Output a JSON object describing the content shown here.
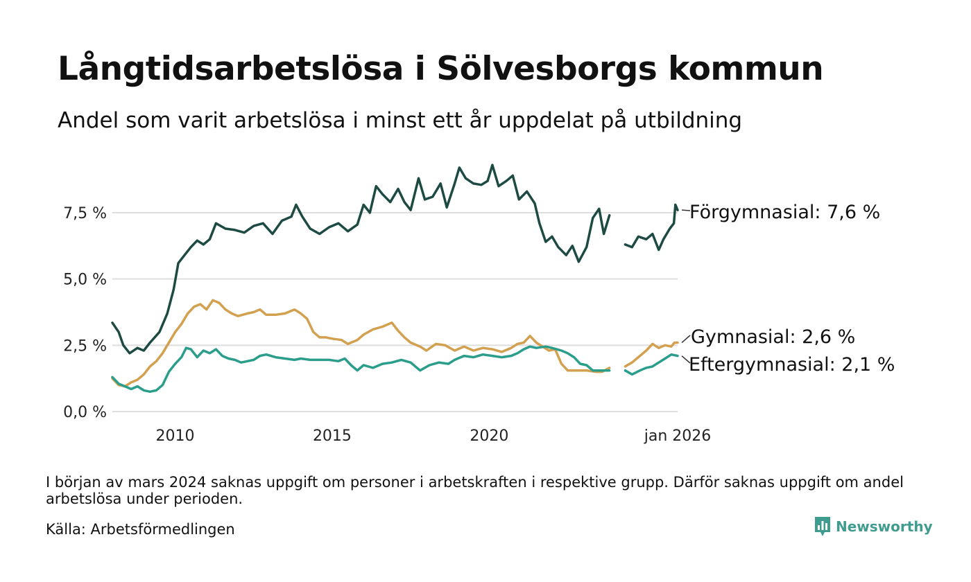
{
  "title": "Långtidsarbetslösa i Sölvesborgs kommun",
  "subtitle": "Andel som varit arbetslösa i minst ett år uppdelat på utbildning",
  "note": "I början av mars 2024 saknas uppgift om personer i arbetskraften i respektive grupp. Därför saknas uppgift om andel arbetslösa under perioden.",
  "source": "Källa: Arbetsförmedlingen",
  "brand": {
    "name": "Newsworthy",
    "icon": "bar-chart-icon",
    "color": "#3f9c8e"
  },
  "chart_data": {
    "type": "line",
    "title": "Långtidsarbetslösa i Sölvesborgs kommun",
    "ylabel": "",
    "xlabel": "",
    "ylim": [
      0,
      9.5
    ],
    "xlim": [
      2008.0,
      2026.0
    ],
    "grid": true,
    "y_ticks": [
      {
        "value": 0,
        "label": "0,0 %"
      },
      {
        "value": 2.5,
        "label": "2,5 %"
      },
      {
        "value": 5.0,
        "label": "5,0 %"
      },
      {
        "value": 7.5,
        "label": "7,5 %"
      }
    ],
    "x_ticks": [
      {
        "value": 2010,
        "label": "2010"
      },
      {
        "value": 2015,
        "label": "2015"
      },
      {
        "value": 2020,
        "label": "2020"
      },
      {
        "value": 2026,
        "label": "jan 2026"
      }
    ],
    "gap": [
      2023.83,
      2024.33
    ],
    "series": [
      {
        "name": "Förgymnasial",
        "end_label": "Förgymnasial: 7,6 %",
        "color": "#1e4a44",
        "points": [
          [
            2008.0,
            3.35
          ],
          [
            2008.2,
            3.0
          ],
          [
            2008.35,
            2.5
          ],
          [
            2008.55,
            2.2
          ],
          [
            2008.8,
            2.4
          ],
          [
            2009.0,
            2.3
          ],
          [
            2009.2,
            2.6
          ],
          [
            2009.5,
            3.0
          ],
          [
            2009.75,
            3.7
          ],
          [
            2009.95,
            4.6
          ],
          [
            2010.1,
            5.6
          ],
          [
            2010.3,
            5.9
          ],
          [
            2010.5,
            6.2
          ],
          [
            2010.7,
            6.45
          ],
          [
            2010.9,
            6.3
          ],
          [
            2011.1,
            6.5
          ],
          [
            2011.3,
            7.1
          ],
          [
            2011.6,
            6.9
          ],
          [
            2011.9,
            6.85
          ],
          [
            2012.2,
            6.75
          ],
          [
            2012.5,
            7.0
          ],
          [
            2012.8,
            7.1
          ],
          [
            2013.1,
            6.7
          ],
          [
            2013.4,
            7.2
          ],
          [
            2013.7,
            7.35
          ],
          [
            2013.85,
            7.8
          ],
          [
            2014.05,
            7.35
          ],
          [
            2014.3,
            6.9
          ],
          [
            2014.6,
            6.7
          ],
          [
            2014.9,
            6.95
          ],
          [
            2015.2,
            7.1
          ],
          [
            2015.5,
            6.8
          ],
          [
            2015.8,
            7.05
          ],
          [
            2016.0,
            7.8
          ],
          [
            2016.2,
            7.5
          ],
          [
            2016.4,
            8.5
          ],
          [
            2016.6,
            8.2
          ],
          [
            2016.85,
            7.9
          ],
          [
            2017.1,
            8.4
          ],
          [
            2017.3,
            7.9
          ],
          [
            2017.5,
            7.6
          ],
          [
            2017.75,
            8.8
          ],
          [
            2017.95,
            8.0
          ],
          [
            2018.2,
            8.1
          ],
          [
            2018.45,
            8.6
          ],
          [
            2018.65,
            7.7
          ],
          [
            2018.9,
            8.6
          ],
          [
            2019.05,
            9.2
          ],
          [
            2019.25,
            8.8
          ],
          [
            2019.5,
            8.6
          ],
          [
            2019.75,
            8.55
          ],
          [
            2019.95,
            8.7
          ],
          [
            2020.1,
            9.3
          ],
          [
            2020.3,
            8.5
          ],
          [
            2020.55,
            8.7
          ],
          [
            2020.75,
            8.9
          ],
          [
            2020.95,
            8.0
          ],
          [
            2021.2,
            8.3
          ],
          [
            2021.45,
            7.85
          ],
          [
            2021.6,
            7.1
          ],
          [
            2021.8,
            6.4
          ],
          [
            2022.0,
            6.6
          ],
          [
            2022.2,
            6.2
          ],
          [
            2022.45,
            5.9
          ],
          [
            2022.65,
            6.25
          ],
          [
            2022.85,
            5.65
          ],
          [
            2023.1,
            6.2
          ],
          [
            2023.3,
            7.3
          ],
          [
            2023.5,
            7.65
          ],
          [
            2023.65,
            6.7
          ],
          [
            2023.83,
            7.4
          ],
          [
            2024.33,
            6.3
          ],
          [
            2024.55,
            6.2
          ],
          [
            2024.75,
            6.6
          ],
          [
            2025.0,
            6.5
          ],
          [
            2025.2,
            6.7
          ],
          [
            2025.4,
            6.1
          ],
          [
            2025.55,
            6.5
          ],
          [
            2025.75,
            6.9
          ],
          [
            2025.88,
            7.1
          ],
          [
            2025.93,
            7.8
          ],
          [
            2026.0,
            7.6
          ]
        ]
      },
      {
        "name": "Gymnasial",
        "end_label": "Gymnasial: 2,6 %",
        "color": "#d2a04f",
        "points": [
          [
            2008.0,
            1.25
          ],
          [
            2008.2,
            1.0
          ],
          [
            2008.4,
            0.95
          ],
          [
            2008.6,
            1.1
          ],
          [
            2008.8,
            1.2
          ],
          [
            2009.0,
            1.4
          ],
          [
            2009.2,
            1.7
          ],
          [
            2009.4,
            1.9
          ],
          [
            2009.6,
            2.2
          ],
          [
            2009.85,
            2.7
          ],
          [
            2010.0,
            3.0
          ],
          [
            2010.2,
            3.3
          ],
          [
            2010.4,
            3.7
          ],
          [
            2010.6,
            3.95
          ],
          [
            2010.8,
            4.05
          ],
          [
            2011.0,
            3.85
          ],
          [
            2011.2,
            4.2
          ],
          [
            2011.4,
            4.1
          ],
          [
            2011.6,
            3.85
          ],
          [
            2011.8,
            3.7
          ],
          [
            2012.0,
            3.6
          ],
          [
            2012.3,
            3.7
          ],
          [
            2012.5,
            3.75
          ],
          [
            2012.7,
            3.85
          ],
          [
            2012.9,
            3.65
          ],
          [
            2013.2,
            3.65
          ],
          [
            2013.5,
            3.7
          ],
          [
            2013.8,
            3.85
          ],
          [
            2014.0,
            3.7
          ],
          [
            2014.2,
            3.5
          ],
          [
            2014.4,
            3.0
          ],
          [
            2014.6,
            2.8
          ],
          [
            2014.8,
            2.8
          ],
          [
            2015.0,
            2.75
          ],
          [
            2015.3,
            2.7
          ],
          [
            2015.5,
            2.55
          ],
          [
            2015.8,
            2.7
          ],
          [
            2016.0,
            2.9
          ],
          [
            2016.3,
            3.1
          ],
          [
            2016.6,
            3.2
          ],
          [
            2016.9,
            3.35
          ],
          [
            2017.1,
            3.05
          ],
          [
            2017.3,
            2.8
          ],
          [
            2017.5,
            2.6
          ],
          [
            2017.8,
            2.45
          ],
          [
            2018.0,
            2.3
          ],
          [
            2018.3,
            2.55
          ],
          [
            2018.6,
            2.5
          ],
          [
            2018.9,
            2.3
          ],
          [
            2019.2,
            2.45
          ],
          [
            2019.5,
            2.3
          ],
          [
            2019.8,
            2.4
          ],
          [
            2020.1,
            2.35
          ],
          [
            2020.4,
            2.25
          ],
          [
            2020.7,
            2.4
          ],
          [
            2020.9,
            2.55
          ],
          [
            2021.1,
            2.6
          ],
          [
            2021.3,
            2.85
          ],
          [
            2021.5,
            2.6
          ],
          [
            2021.7,
            2.45
          ],
          [
            2021.9,
            2.3
          ],
          [
            2022.1,
            2.35
          ],
          [
            2022.3,
            1.8
          ],
          [
            2022.5,
            1.55
          ],
          [
            2022.8,
            1.55
          ],
          [
            2023.1,
            1.55
          ],
          [
            2023.4,
            1.5
          ],
          [
            2023.6,
            1.5
          ],
          [
            2023.83,
            1.65
          ],
          [
            2024.33,
            1.7
          ],
          [
            2024.55,
            1.85
          ],
          [
            2024.8,
            2.1
          ],
          [
            2025.0,
            2.3
          ],
          [
            2025.2,
            2.55
          ],
          [
            2025.4,
            2.4
          ],
          [
            2025.6,
            2.5
          ],
          [
            2025.8,
            2.45
          ],
          [
            2025.9,
            2.6
          ],
          [
            2026.0,
            2.6
          ]
        ]
      },
      {
        "name": "Eftergymnasial",
        "end_label": "Eftergymnasial: 2,1 %",
        "color": "#2a9d8b",
        "points": [
          [
            2008.0,
            1.3
          ],
          [
            2008.2,
            1.05
          ],
          [
            2008.4,
            0.95
          ],
          [
            2008.6,
            0.85
          ],
          [
            2008.8,
            0.95
          ],
          [
            2009.0,
            0.8
          ],
          [
            2009.2,
            0.75
          ],
          [
            2009.4,
            0.8
          ],
          [
            2009.6,
            1.0
          ],
          [
            2009.8,
            1.5
          ],
          [
            2010.0,
            1.8
          ],
          [
            2010.2,
            2.05
          ],
          [
            2010.35,
            2.4
          ],
          [
            2010.5,
            2.35
          ],
          [
            2010.7,
            2.05
          ],
          [
            2010.9,
            2.3
          ],
          [
            2011.1,
            2.2
          ],
          [
            2011.3,
            2.35
          ],
          [
            2011.5,
            2.1
          ],
          [
            2011.7,
            2.0
          ],
          [
            2011.9,
            1.95
          ],
          [
            2012.1,
            1.85
          ],
          [
            2012.3,
            1.9
          ],
          [
            2012.5,
            1.95
          ],
          [
            2012.7,
            2.1
          ],
          [
            2012.9,
            2.15
          ],
          [
            2013.2,
            2.05
          ],
          [
            2013.5,
            2.0
          ],
          [
            2013.8,
            1.95
          ],
          [
            2014.0,
            2.0
          ],
          [
            2014.3,
            1.95
          ],
          [
            2014.6,
            1.95
          ],
          [
            2014.9,
            1.95
          ],
          [
            2015.2,
            1.9
          ],
          [
            2015.4,
            2.0
          ],
          [
            2015.6,
            1.75
          ],
          [
            2015.8,
            1.55
          ],
          [
            2016.0,
            1.75
          ],
          [
            2016.3,
            1.65
          ],
          [
            2016.6,
            1.8
          ],
          [
            2016.9,
            1.85
          ],
          [
            2017.2,
            1.95
          ],
          [
            2017.5,
            1.85
          ],
          [
            2017.8,
            1.55
          ],
          [
            2018.1,
            1.75
          ],
          [
            2018.4,
            1.85
          ],
          [
            2018.7,
            1.8
          ],
          [
            2018.9,
            1.95
          ],
          [
            2019.2,
            2.1
          ],
          [
            2019.5,
            2.05
          ],
          [
            2019.8,
            2.15
          ],
          [
            2020.1,
            2.1
          ],
          [
            2020.4,
            2.05
          ],
          [
            2020.7,
            2.1
          ],
          [
            2020.9,
            2.2
          ],
          [
            2021.1,
            2.35
          ],
          [
            2021.3,
            2.45
          ],
          [
            2021.5,
            2.4
          ],
          [
            2021.8,
            2.45
          ],
          [
            2022.0,
            2.4
          ],
          [
            2022.3,
            2.3
          ],
          [
            2022.5,
            2.2
          ],
          [
            2022.7,
            2.05
          ],
          [
            2022.9,
            1.8
          ],
          [
            2023.1,
            1.75
          ],
          [
            2023.3,
            1.55
          ],
          [
            2023.6,
            1.55
          ],
          [
            2023.83,
            1.55
          ],
          [
            2024.33,
            1.55
          ],
          [
            2024.55,
            1.4
          ],
          [
            2024.8,
            1.55
          ],
          [
            2025.0,
            1.65
          ],
          [
            2025.2,
            1.7
          ],
          [
            2025.4,
            1.85
          ],
          [
            2025.6,
            2.0
          ],
          [
            2025.8,
            2.15
          ],
          [
            2026.0,
            2.1
          ]
        ]
      }
    ]
  }
}
